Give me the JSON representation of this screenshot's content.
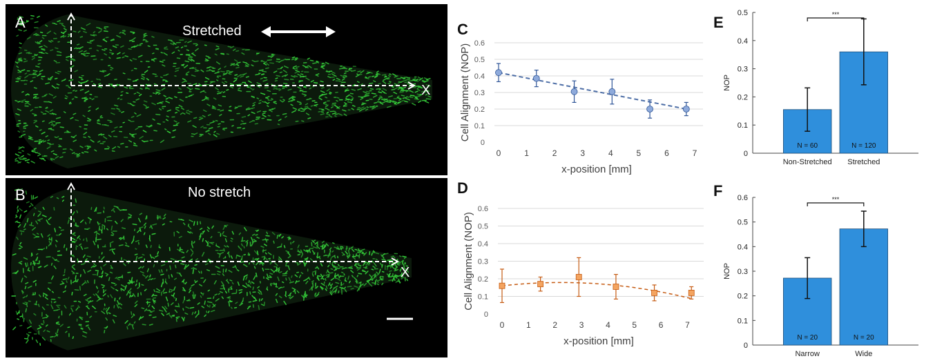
{
  "panels": {
    "a": {
      "letter": "A",
      "label": "Stretched",
      "axis_x": "X"
    },
    "b": {
      "letter": "B",
      "label": "No stretch",
      "axis_x": "X"
    },
    "c": {
      "letter": "C"
    },
    "d": {
      "letter": "D"
    },
    "e": {
      "letter": "E"
    },
    "f": {
      "letter": "F"
    }
  },
  "colors": {
    "cells": "#35d03a",
    "c_series": "#8eaadb",
    "c_trend": "#2f5597",
    "d_series": "#f4a460",
    "d_trend": "#c55a11",
    "bars": "#2f8fdc"
  },
  "chart_data": [
    {
      "id": "C",
      "type": "scatter",
      "xlabel": "x-position [mm]",
      "ylabel": "Cell Alignment (NOP)",
      "xlim": [
        0,
        7
      ],
      "ylim": [
        0,
        0.6
      ],
      "xticks": [
        "0",
        "1",
        "2",
        "3",
        "4",
        "5",
        "6",
        "7"
      ],
      "yticks": [
        "0",
        "0.1",
        "0.2",
        "0.3",
        "0.4",
        "0.5",
        "0.6"
      ],
      "marker": "circle",
      "grid": true,
      "x": [
        0,
        1.35,
        2.7,
        4.05,
        5.4,
        6.7
      ],
      "y": [
        0.42,
        0.385,
        0.305,
        0.305,
        0.2,
        0.2
      ],
      "err": [
        0.055,
        0.05,
        0.065,
        0.075,
        0.055,
        0.04
      ],
      "trend": {
        "from": [
          0,
          0.42
        ],
        "to": [
          6.7,
          0.2
        ]
      }
    },
    {
      "id": "D",
      "type": "scatter",
      "xlabel": "x-position [mm]",
      "ylabel": "Cell Alignment (NOP)",
      "xlim": [
        0,
        7.3
      ],
      "ylim": [
        0,
        0.6
      ],
      "xticks": [
        "0",
        "1",
        "2",
        "3",
        "4",
        "5",
        "6",
        "7"
      ],
      "yticks": [
        "0",
        "0.1",
        "0.2",
        "0.3",
        "0.4",
        "0.5",
        "0.6"
      ],
      "marker": "square",
      "grid": true,
      "x": [
        0,
        1.45,
        2.9,
        4.3,
        5.75,
        7.15
      ],
      "y": [
        0.16,
        0.17,
        0.21,
        0.155,
        0.12,
        0.12
      ],
      "err": [
        0.095,
        0.04,
        0.11,
        0.07,
        0.045,
        0.035
      ],
      "trend": {
        "quadratic": [
          0.16,
          0.017,
          -0.0038
        ]
      }
    },
    {
      "id": "E",
      "type": "bar",
      "ylabel": "NOP",
      "categories": [
        "Non-Stretched",
        "Stretched"
      ],
      "values": [
        0.155,
        0.36
      ],
      "err": [
        0.077,
        0.117
      ],
      "n_labels": [
        "N = 60",
        "N = 120"
      ],
      "ylim": [
        0,
        0.5
      ],
      "yticks": [
        "0",
        "0.1",
        "0.2",
        "0.3",
        "0.4",
        "0.5"
      ],
      "significance": "***"
    },
    {
      "id": "F",
      "type": "bar",
      "ylabel": "NOP",
      "categories": [
        "Narrow",
        "Wide"
      ],
      "values": [
        0.272,
        0.472
      ],
      "err": [
        0.083,
        0.072
      ],
      "n_labels": [
        "N = 20",
        "N = 20"
      ],
      "ylim": [
        0,
        0.6
      ],
      "yticks": [
        "0",
        "0.1",
        "0.2",
        "0.3",
        "0.4",
        "0.5",
        "0.6"
      ],
      "significance": "***"
    }
  ]
}
